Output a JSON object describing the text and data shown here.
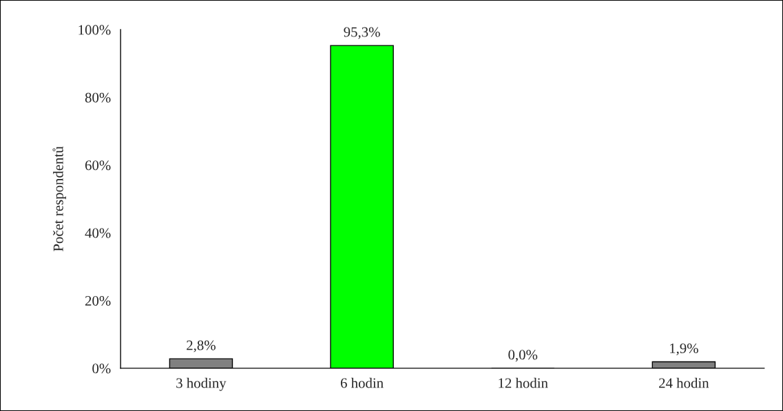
{
  "chart_data": {
    "type": "bar",
    "ylabel": "Počet respondentů",
    "categories": [
      "3 hodiny",
      "6 hodin",
      "12 hodin",
      "24 hodin"
    ],
    "values": [
      2.8,
      95.3,
      0.0,
      1.9
    ],
    "colors": [
      "#808080",
      "#00ff00",
      "#808080",
      "#808080"
    ],
    "value_labels": [
      "2,8%",
      "95,3%",
      "0,0%",
      "1,9%"
    ],
    "ylim": [
      0,
      100
    ],
    "yticks": [
      {
        "value": 0,
        "label": "0%"
      },
      {
        "value": 20,
        "label": "20%"
      },
      {
        "value": 40,
        "label": "40%"
      },
      {
        "value": 60,
        "label": "60%"
      },
      {
        "value": 80,
        "label": "80%"
      },
      {
        "value": 100,
        "label": "100%"
      }
    ],
    "grid": false,
    "legend": false
  }
}
